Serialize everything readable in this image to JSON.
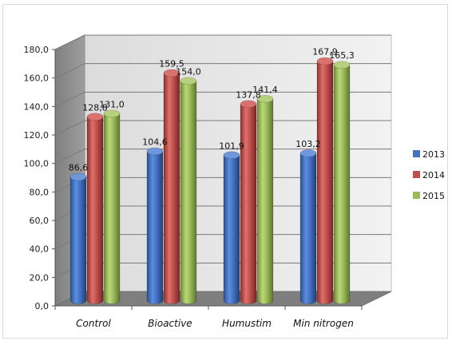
{
  "chart_data": {
    "type": "bar",
    "categories": [
      "Control",
      "Bioactive",
      "Humustim",
      "Min nitrogen"
    ],
    "series": [
      {
        "name": "2013",
        "values": [
          86.6,
          104.6,
          101.9,
          103.2
        ],
        "color": "#4472c4",
        "labels": [
          "86,6",
          "104,6",
          "101,9",
          "103,2"
        ]
      },
      {
        "name": "2014",
        "values": [
          128.8,
          159.5,
          137.8,
          167.9
        ],
        "color": "#c0504d",
        "labels": [
          "128,8",
          "159,5",
          "137,8",
          "167,9"
        ]
      },
      {
        "name": "2015",
        "values": [
          131.0,
          154.0,
          141.4,
          165.3
        ],
        "color": "#9bbb59",
        "labels": [
          "131,0",
          "154,0",
          "141,4",
          "165,3"
        ]
      }
    ],
    "ylim": [
      0,
      180
    ],
    "yticks": [
      "0,0",
      "20,0",
      "40,0",
      "60,0",
      "80,0",
      "100,0",
      "120,0",
      "140,0",
      "160,0",
      "180,0"
    ],
    "grid": true,
    "legend": "right",
    "title": "",
    "xlabel": "",
    "ylabel": ""
  }
}
